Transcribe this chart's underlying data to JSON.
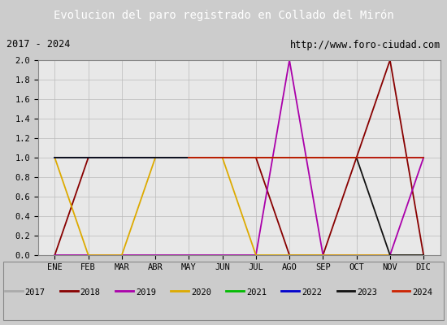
{
  "title": "Evolucion del paro registrado en Collado del Mirón",
  "title_color": "#ffffff",
  "title_bg": "#5588cc",
  "subtitle_left": "2017 - 2024",
  "subtitle_right": "http://www.foro-ciudad.com",
  "xlabel_months": [
    "ENE",
    "FEB",
    "MAR",
    "ABR",
    "MAY",
    "JUN",
    "JUL",
    "AGO",
    "SEP",
    "OCT",
    "NOV",
    "DIC"
  ],
  "ylim": [
    0.0,
    2.0
  ],
  "yticks": [
    0.0,
    0.2,
    0.4,
    0.6,
    0.8,
    1.0,
    1.2,
    1.4,
    1.6,
    1.8,
    2.0
  ],
  "series": [
    {
      "year": "2017",
      "color": "#aaaaaa",
      "data": [
        0,
        0,
        0,
        0,
        0,
        0,
        0,
        0,
        0,
        0,
        0,
        0
      ]
    },
    {
      "year": "2018",
      "color": "#880000",
      "data": [
        0,
        1,
        1,
        1,
        1,
        1,
        1,
        0,
        0,
        1,
        2,
        0
      ]
    },
    {
      "year": "2019",
      "color": "#aa00aa",
      "data": [
        0,
        0,
        0,
        0,
        0,
        0,
        0,
        2,
        0,
        0,
        0,
        1
      ]
    },
    {
      "year": "2020",
      "color": "#ddaa00",
      "data": [
        1,
        0,
        0,
        1,
        1,
        1,
        0,
        0,
        0,
        0,
        0,
        0
      ]
    },
    {
      "year": "2021",
      "color": "#00bb00",
      "data": [
        1,
        1,
        1,
        1,
        1,
        1,
        1,
        1,
        1,
        1,
        1,
        1
      ]
    },
    {
      "year": "2022",
      "color": "#0000cc",
      "data": [
        1,
        1,
        1,
        1,
        1,
        1,
        1,
        1,
        1,
        1,
        1,
        1
      ]
    },
    {
      "year": "2023",
      "color": "#111111",
      "data": [
        1,
        1,
        1,
        1,
        1,
        1,
        1,
        1,
        1,
        1,
        0,
        0
      ]
    },
    {
      "year": "2024",
      "color": "#cc2200",
      "data": [
        null,
        null,
        null,
        null,
        1,
        1,
        1,
        1,
        1,
        1,
        1,
        1
      ]
    }
  ],
  "bg_color": "#cccccc",
  "plot_bg": "#e8e8e8",
  "header_bg": "#5588cc",
  "subheader_bg": "#dddddd",
  "legend_bg": "#dddddd",
  "grid_color": "#bbbbbb"
}
